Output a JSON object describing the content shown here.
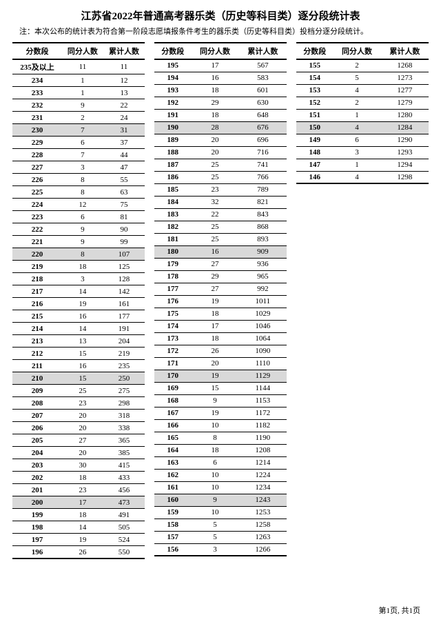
{
  "title": "江苏省2022年普通高考器乐类（历史等科目类）逐分段统计表",
  "note": "注：本次公布的统计表为符合第一阶段志愿填报条件考生的器乐类（历史等科目类）投档分逐分段统计。",
  "headers": {
    "score": "分数段",
    "same": "同分人数",
    "cum": "累计人数"
  },
  "footer": "第1页, 共1页",
  "highlight_every": 10,
  "columns": [
    {
      "rows": [
        {
          "score": "235及以上",
          "same": 11,
          "cum": 11
        },
        {
          "score": "234",
          "same": 1,
          "cum": 12
        },
        {
          "score": "233",
          "same": 1,
          "cum": 13
        },
        {
          "score": "232",
          "same": 9,
          "cum": 22
        },
        {
          "score": "231",
          "same": 2,
          "cum": 24
        },
        {
          "score": "230",
          "same": 7,
          "cum": 31,
          "hl": true
        },
        {
          "score": "229",
          "same": 6,
          "cum": 37
        },
        {
          "score": "228",
          "same": 7,
          "cum": 44
        },
        {
          "score": "227",
          "same": 3,
          "cum": 47
        },
        {
          "score": "226",
          "same": 8,
          "cum": 55
        },
        {
          "score": "225",
          "same": 8,
          "cum": 63
        },
        {
          "score": "224",
          "same": 12,
          "cum": 75
        },
        {
          "score": "223",
          "same": 6,
          "cum": 81
        },
        {
          "score": "222",
          "same": 9,
          "cum": 90
        },
        {
          "score": "221",
          "same": 9,
          "cum": 99
        },
        {
          "score": "220",
          "same": 8,
          "cum": 107,
          "hl": true
        },
        {
          "score": "219",
          "same": 18,
          "cum": 125
        },
        {
          "score": "218",
          "same": 3,
          "cum": 128
        },
        {
          "score": "217",
          "same": 14,
          "cum": 142
        },
        {
          "score": "216",
          "same": 19,
          "cum": 161
        },
        {
          "score": "215",
          "same": 16,
          "cum": 177
        },
        {
          "score": "214",
          "same": 14,
          "cum": 191
        },
        {
          "score": "213",
          "same": 13,
          "cum": 204
        },
        {
          "score": "212",
          "same": 15,
          "cum": 219
        },
        {
          "score": "211",
          "same": 16,
          "cum": 235
        },
        {
          "score": "210",
          "same": 15,
          "cum": 250,
          "hl": true
        },
        {
          "score": "209",
          "same": 25,
          "cum": 275
        },
        {
          "score": "208",
          "same": 23,
          "cum": 298
        },
        {
          "score": "207",
          "same": 20,
          "cum": 318
        },
        {
          "score": "206",
          "same": 20,
          "cum": 338
        },
        {
          "score": "205",
          "same": 27,
          "cum": 365
        },
        {
          "score": "204",
          "same": 20,
          "cum": 385
        },
        {
          "score": "203",
          "same": 30,
          "cum": 415
        },
        {
          "score": "202",
          "same": 18,
          "cum": 433
        },
        {
          "score": "201",
          "same": 23,
          "cum": 456
        },
        {
          "score": "200",
          "same": 17,
          "cum": 473,
          "hl": true
        },
        {
          "score": "199",
          "same": 18,
          "cum": 491
        },
        {
          "score": "198",
          "same": 14,
          "cum": 505
        },
        {
          "score": "197",
          "same": 19,
          "cum": 524
        },
        {
          "score": "196",
          "same": 26,
          "cum": 550
        }
      ]
    },
    {
      "rows": [
        {
          "score": "195",
          "same": 17,
          "cum": 567
        },
        {
          "score": "194",
          "same": 16,
          "cum": 583
        },
        {
          "score": "193",
          "same": 18,
          "cum": 601
        },
        {
          "score": "192",
          "same": 29,
          "cum": 630
        },
        {
          "score": "191",
          "same": 18,
          "cum": 648
        },
        {
          "score": "190",
          "same": 28,
          "cum": 676,
          "hl": true
        },
        {
          "score": "189",
          "same": 20,
          "cum": 696
        },
        {
          "score": "188",
          "same": 20,
          "cum": 716
        },
        {
          "score": "187",
          "same": 25,
          "cum": 741
        },
        {
          "score": "186",
          "same": 25,
          "cum": 766
        },
        {
          "score": "185",
          "same": 23,
          "cum": 789
        },
        {
          "score": "184",
          "same": 32,
          "cum": 821
        },
        {
          "score": "183",
          "same": 22,
          "cum": 843
        },
        {
          "score": "182",
          "same": 25,
          "cum": 868
        },
        {
          "score": "181",
          "same": 25,
          "cum": 893
        },
        {
          "score": "180",
          "same": 16,
          "cum": 909,
          "hl": true
        },
        {
          "score": "179",
          "same": 27,
          "cum": 936
        },
        {
          "score": "178",
          "same": 29,
          "cum": 965
        },
        {
          "score": "177",
          "same": 27,
          "cum": 992
        },
        {
          "score": "176",
          "same": 19,
          "cum": 1011
        },
        {
          "score": "175",
          "same": 18,
          "cum": 1029
        },
        {
          "score": "174",
          "same": 17,
          "cum": 1046
        },
        {
          "score": "173",
          "same": 18,
          "cum": 1064
        },
        {
          "score": "172",
          "same": 26,
          "cum": 1090
        },
        {
          "score": "171",
          "same": 20,
          "cum": 1110
        },
        {
          "score": "170",
          "same": 19,
          "cum": 1129,
          "hl": true
        },
        {
          "score": "169",
          "same": 15,
          "cum": 1144
        },
        {
          "score": "168",
          "same": 9,
          "cum": 1153
        },
        {
          "score": "167",
          "same": 19,
          "cum": 1172
        },
        {
          "score": "166",
          "same": 10,
          "cum": 1182
        },
        {
          "score": "165",
          "same": 8,
          "cum": 1190
        },
        {
          "score": "164",
          "same": 18,
          "cum": 1208
        },
        {
          "score": "163",
          "same": 6,
          "cum": 1214
        },
        {
          "score": "162",
          "same": 10,
          "cum": 1224
        },
        {
          "score": "161",
          "same": 10,
          "cum": 1234
        },
        {
          "score": "160",
          "same": 9,
          "cum": 1243,
          "hl": true
        },
        {
          "score": "159",
          "same": 10,
          "cum": 1253
        },
        {
          "score": "158",
          "same": 5,
          "cum": 1258
        },
        {
          "score": "157",
          "same": 5,
          "cum": 1263
        },
        {
          "score": "156",
          "same": 3,
          "cum": 1266
        }
      ]
    },
    {
      "rows": [
        {
          "score": "155",
          "same": 2,
          "cum": 1268
        },
        {
          "score": "154",
          "same": 5,
          "cum": 1273
        },
        {
          "score": "153",
          "same": 4,
          "cum": 1277
        },
        {
          "score": "152",
          "same": 2,
          "cum": 1279
        },
        {
          "score": "151",
          "same": 1,
          "cum": 1280
        },
        {
          "score": "150",
          "same": 4,
          "cum": 1284,
          "hl": true
        },
        {
          "score": "149",
          "same": 6,
          "cum": 1290
        },
        {
          "score": "148",
          "same": 3,
          "cum": 1293
        },
        {
          "score": "147",
          "same": 1,
          "cum": 1294
        },
        {
          "score": "146",
          "same": 4,
          "cum": 1298
        }
      ]
    }
  ]
}
